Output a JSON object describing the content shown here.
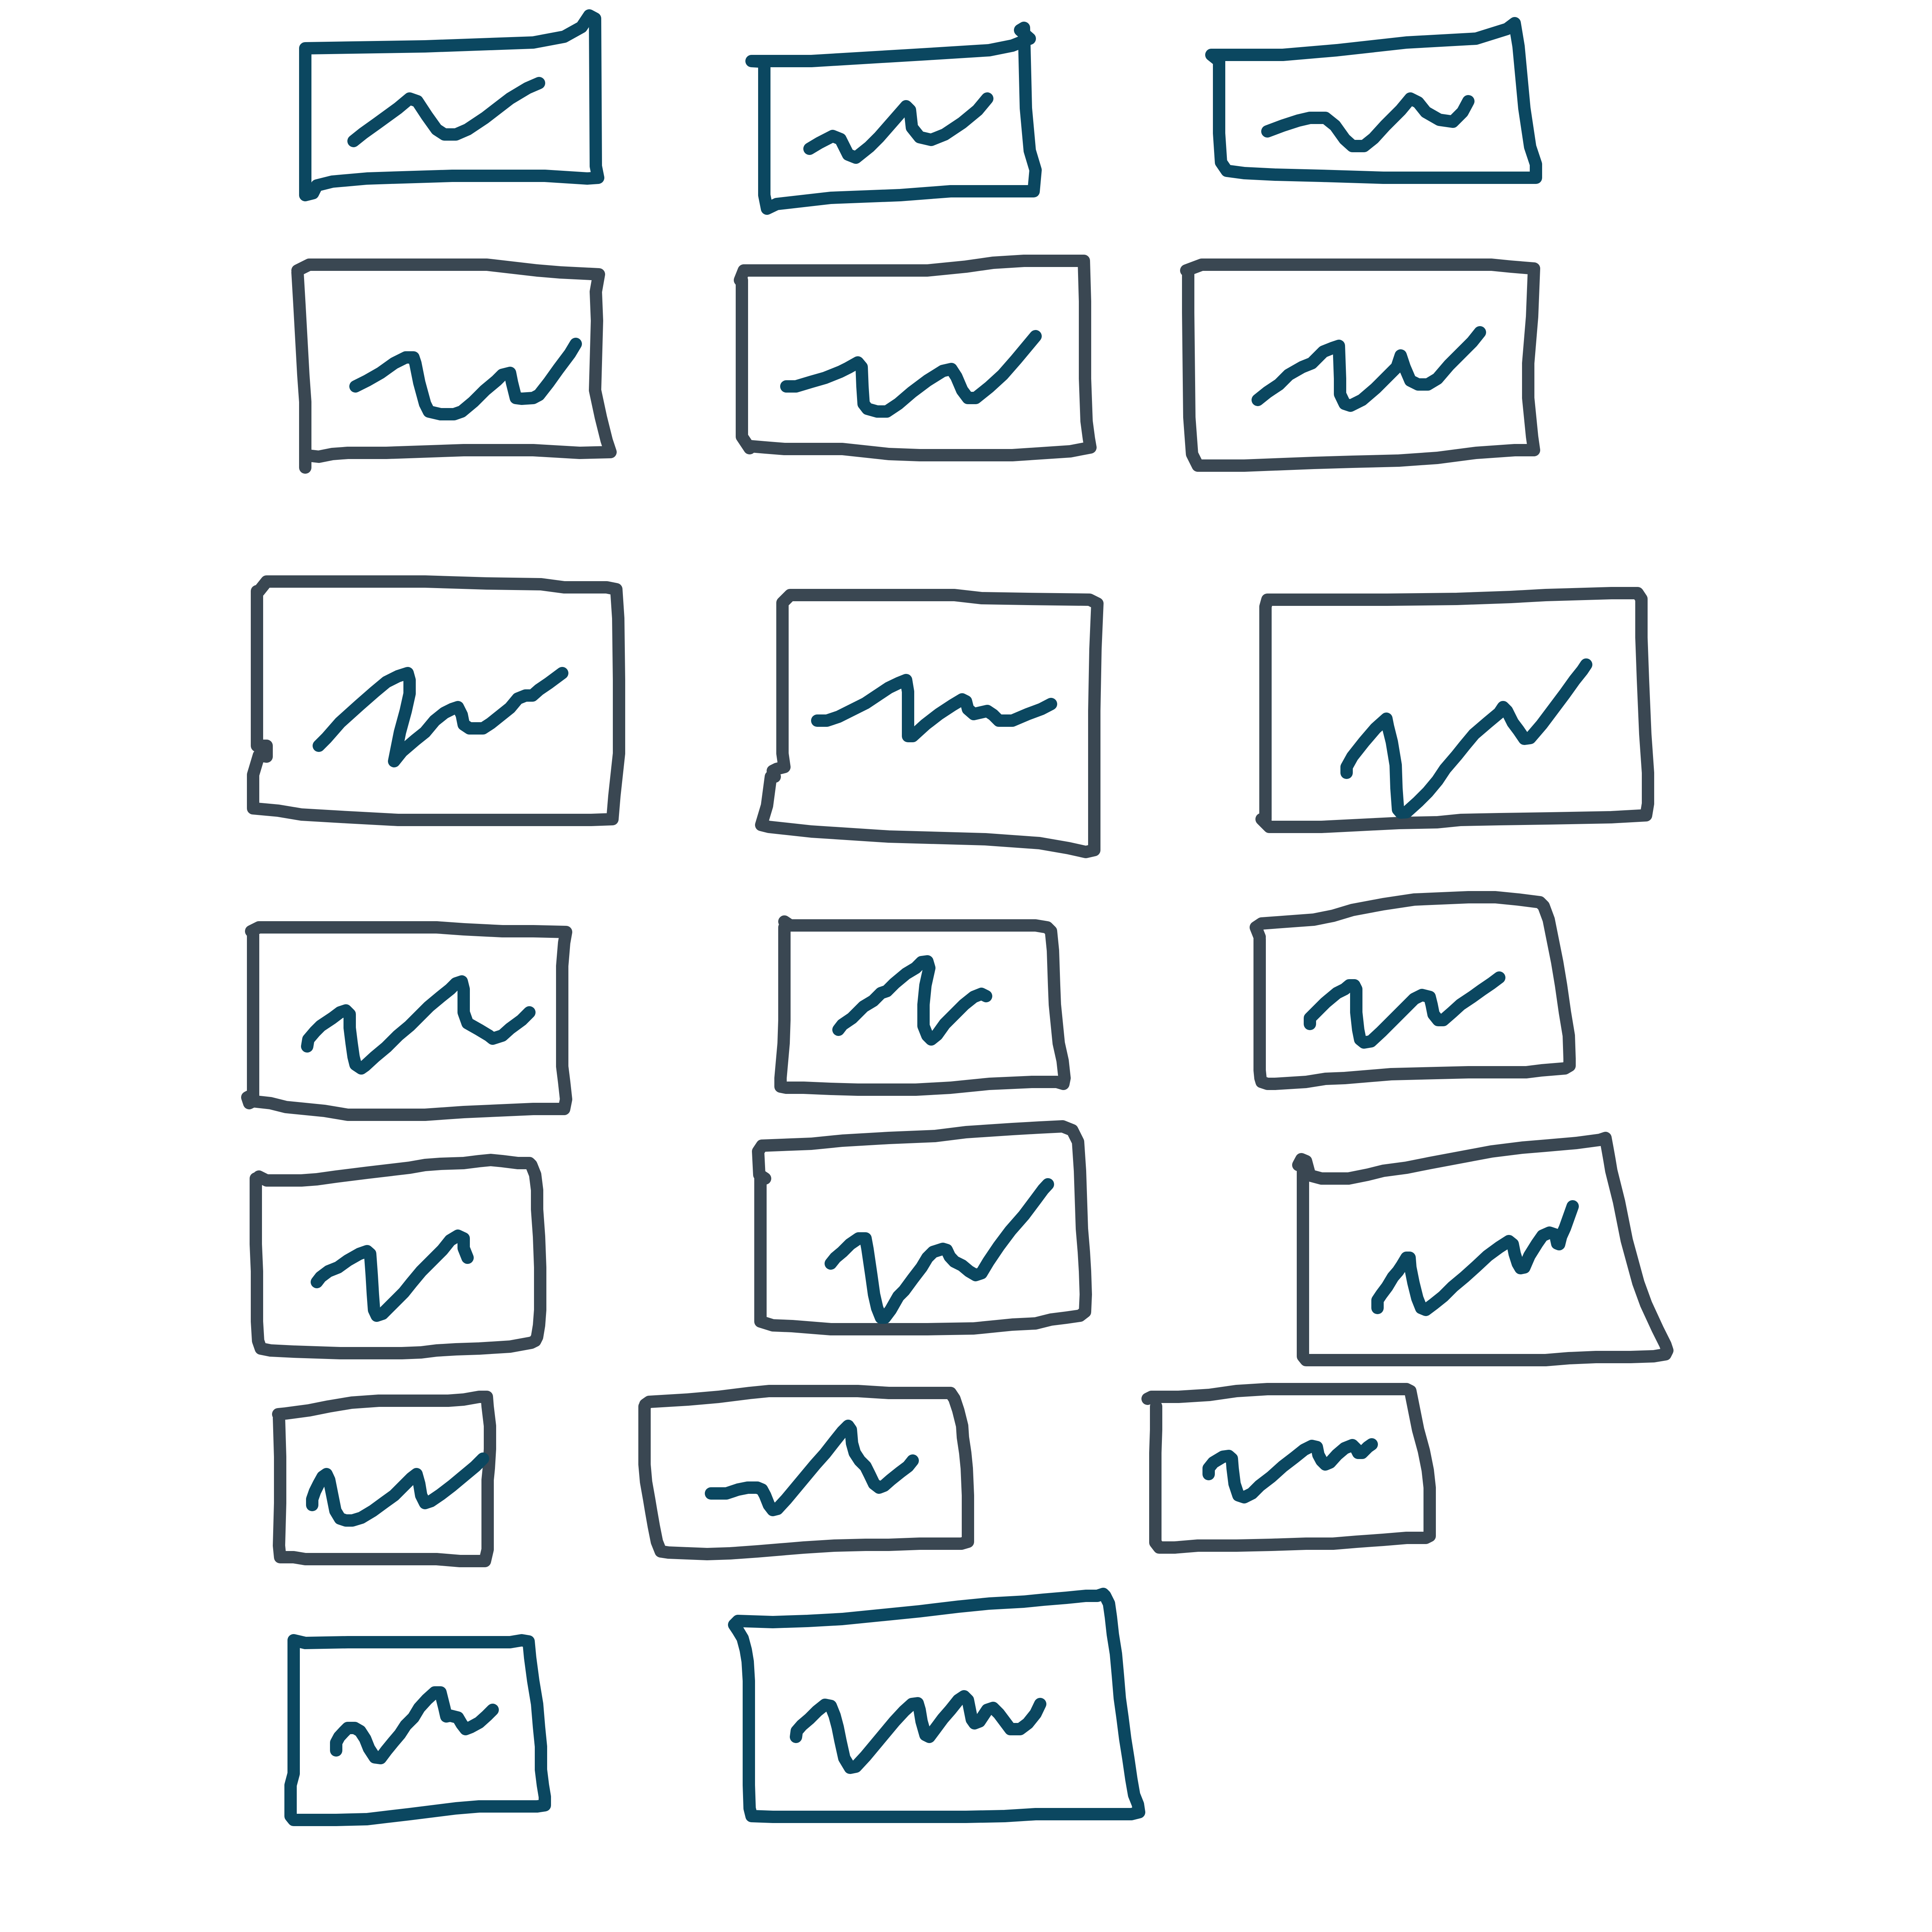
{
  "colors": {
    "background": "#ffffff",
    "teal_ink": "#0b4760",
    "slate_ink": "#3a4752"
  },
  "sketch": {
    "kind": "hand-drawn grid of rectangles, each containing a zigzag line",
    "text": [],
    "frame_count": 20,
    "frames": [
      {
        "id": "row1-col1",
        "frame_color": "teal_ink",
        "line_color": "teal_ink"
      },
      {
        "id": "row1-col2",
        "frame_color": "teal_ink",
        "line_color": "teal_ink"
      },
      {
        "id": "row1-col3",
        "frame_color": "teal_ink",
        "line_color": "teal_ink"
      },
      {
        "id": "row2-col1",
        "frame_color": "slate_ink",
        "line_color": "teal_ink"
      },
      {
        "id": "row2-col2",
        "frame_color": "slate_ink",
        "line_color": "teal_ink"
      },
      {
        "id": "row2-col3",
        "frame_color": "slate_ink",
        "line_color": "teal_ink"
      },
      {
        "id": "row3-col1",
        "frame_color": "slate_ink",
        "line_color": "teal_ink"
      },
      {
        "id": "row3-col2",
        "frame_color": "slate_ink",
        "line_color": "teal_ink"
      },
      {
        "id": "row3-col3",
        "frame_color": "slate_ink",
        "line_color": "teal_ink"
      },
      {
        "id": "row4-col1",
        "frame_color": "slate_ink",
        "line_color": "teal_ink"
      },
      {
        "id": "row4-col2",
        "frame_color": "slate_ink",
        "line_color": "teal_ink"
      },
      {
        "id": "row4-col3",
        "frame_color": "slate_ink",
        "line_color": "teal_ink"
      },
      {
        "id": "row5-col1",
        "frame_color": "slate_ink",
        "line_color": "teal_ink"
      },
      {
        "id": "row5-col2",
        "frame_color": "slate_ink",
        "line_color": "teal_ink"
      },
      {
        "id": "row5-col3",
        "frame_color": "slate_ink",
        "line_color": "teal_ink"
      },
      {
        "id": "row6-col1",
        "frame_color": "slate_ink",
        "line_color": "teal_ink"
      },
      {
        "id": "row6-col2",
        "frame_color": "slate_ink",
        "line_color": "teal_ink"
      },
      {
        "id": "row6-col3",
        "frame_color": "slate_ink",
        "line_color": "teal_ink"
      },
      {
        "id": "row7-col1",
        "frame_color": "teal_ink",
        "line_color": "teal_ink"
      },
      {
        "id": "row7-col2",
        "frame_color": "teal_ink",
        "line_color": "teal_ink"
      }
    ]
  }
}
